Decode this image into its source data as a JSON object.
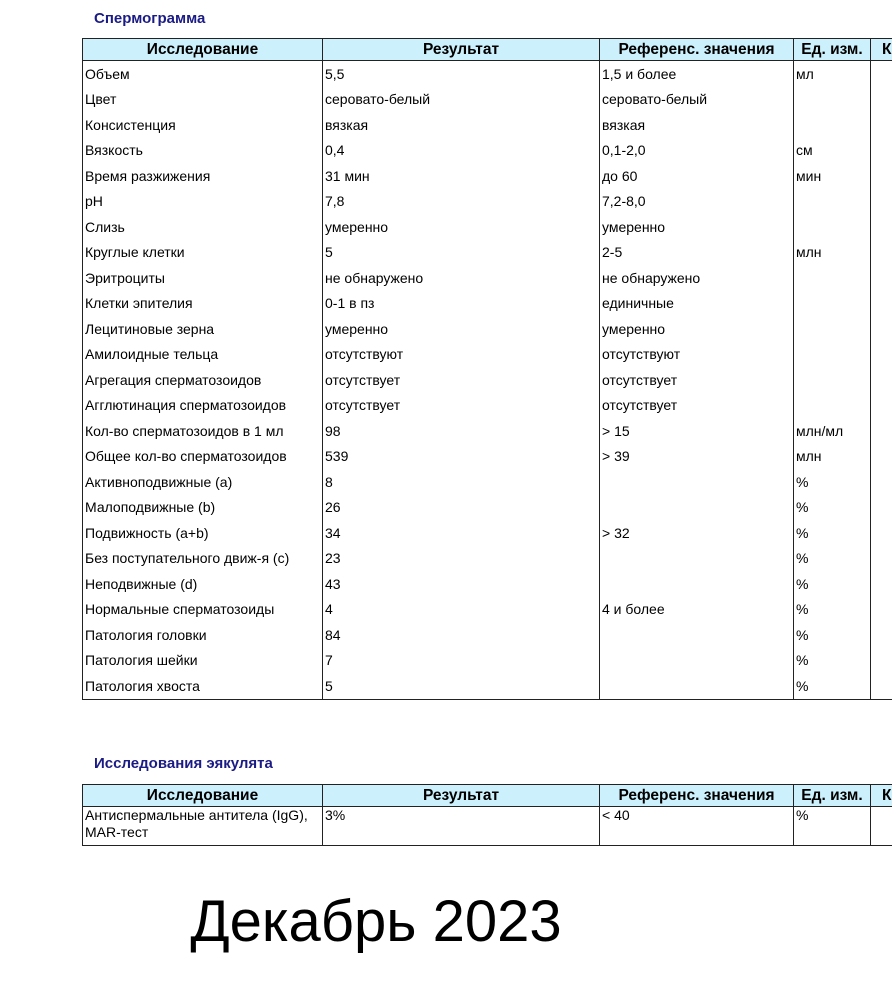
{
  "section1": {
    "title": "Спермограмма",
    "headers": [
      "Исследование",
      "Результат",
      "Референс. значения",
      "Ед. изм.",
      "Ко"
    ],
    "rows": [
      [
        "Объем",
        "5,5",
        "1,5 и более",
        "мл"
      ],
      [
        "Цвет",
        "серовато-белый",
        "серовато-белый",
        ""
      ],
      [
        "Консистенция",
        "вязкая",
        "вязкая",
        ""
      ],
      [
        "Вязкость",
        "0,4",
        "0,1-2,0",
        "см"
      ],
      [
        "Время разжижения",
        "31 мин",
        "до 60",
        "мин"
      ],
      [
        "pH",
        "7,8",
        "7,2-8,0",
        ""
      ],
      [
        "Слизь",
        "умеренно",
        "умеренно",
        ""
      ],
      [
        "Круглые клетки",
        "5",
        "2-5",
        "млн"
      ],
      [
        "Эритроциты",
        "не обнаружено",
        "не обнаружено",
        ""
      ],
      [
        "Клетки эпителия",
        "0-1 в пз",
        "единичные",
        ""
      ],
      [
        "Лецитиновые зерна",
        "умеренно",
        "умеренно",
        ""
      ],
      [
        "Амилоидные тельца",
        "отсутствуют",
        "отсутствуют",
        ""
      ],
      [
        "Агрегация сперматозоидов",
        "отсутствует",
        "отсутствует",
        ""
      ],
      [
        "Агглютинация сперматозоидов",
        "отсутствует",
        "отсутствует",
        ""
      ],
      [
        "Кол-во сперматозоидов в 1 мл",
        "98",
        "> 15",
        "млн/мл"
      ],
      [
        "Общее кол-во сперматозоидов",
        "539",
        "> 39",
        "млн"
      ],
      [
        "Активноподвижные (a)",
        "8",
        "",
        "%"
      ],
      [
        "Малоподвижные (b)",
        "26",
        "",
        "%"
      ],
      [
        "Подвижность (a+b)",
        "34",
        "> 32",
        "%"
      ],
      [
        "Без поступательного движ-я (c)",
        "23",
        "",
        "%"
      ],
      [
        "Неподвижные (d)",
        "43",
        "",
        "%"
      ],
      [
        "Нормальные сперматозоиды",
        "4",
        "4 и более",
        "%"
      ],
      [
        "Патология головки",
        "84",
        "",
        "%"
      ],
      [
        "Патология шейки",
        "7",
        "",
        "%"
      ],
      [
        "Патология хвоста",
        "5",
        "",
        "%"
      ]
    ]
  },
  "section2": {
    "title": "Исследования эякулята",
    "headers": [
      "Исследование",
      "Результат",
      "Референс. значения",
      "Ед. изм.",
      "Ко"
    ],
    "rows": [
      [
        "Антиспермальные антитела (IgG), MAR-тест",
        "3%",
        "< 40",
        "%"
      ]
    ]
  },
  "footer": "Декабрь 2023"
}
